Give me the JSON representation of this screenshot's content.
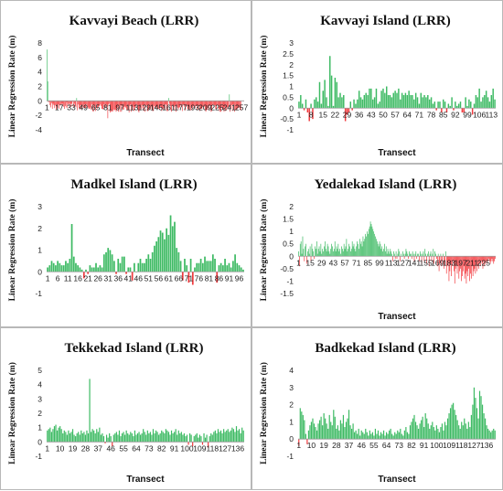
{
  "colors": {
    "positive": "#3dba63",
    "negative": "#f2383c",
    "border": "#b8b8b8"
  },
  "chart_data": [
    {
      "type": "bar",
      "title": "Kavvayi Beach (LRR)",
      "xlabel": "Transect",
      "ylabel": "Linear Regression Rate (m)",
      "ylim": [
        -4,
        8
      ],
      "yticks": [
        -4,
        -2,
        0,
        2,
        4,
        6,
        8
      ],
      "xtick_labels": [
        "1",
        "17",
        "33",
        "49",
        "65",
        "81",
        "97",
        "113",
        "129",
        "145",
        "161",
        "177",
        "193",
        "209",
        "225",
        "241",
        "257"
      ],
      "n": 260,
      "values": [
        7.1,
        2.7,
        -0.2,
        -0.1,
        -0.6,
        -0.9,
        -0.3,
        -1.1,
        -0.4,
        -0.6,
        -1.0,
        -0.6,
        -1.2,
        -0.8,
        -1.0,
        -0.5,
        -1.1,
        -0.6,
        -0.5,
        -0.4,
        -0.7,
        -0.4,
        -0.8,
        -1.1,
        -0.7,
        -0.9,
        -0.2,
        -1.0,
        -0.5,
        -0.4,
        -0.8,
        -0.4,
        -0.8,
        -0.4,
        -0.1,
        -0.9,
        -0.4,
        -0.7,
        -0.9,
        0.4,
        -1.3,
        -0.5,
        -1.0,
        -1.2,
        -0.6,
        -1.1,
        -1.2,
        -0.8,
        -1.0,
        -0.5,
        -1.0,
        -1.0,
        -0.5,
        -0.9,
        -0.9,
        -1.1,
        -1.1,
        -0.9,
        -1.2,
        -0.5,
        -1.4,
        -1.5,
        -0.6,
        -1.1,
        -1.4,
        -0.5,
        -1.1,
        -0.9,
        -0.8,
        -0.7,
        -0.5,
        -0.7,
        -1.1,
        -1.1,
        -1.2,
        -0.5,
        -1.0,
        -0.9,
        -0.5,
        -0.7,
        -2.4,
        -0.5,
        -0.4,
        -1.6,
        -1.5,
        -1.3,
        -1.5,
        -1.4,
        -1.2,
        -1.3,
        -1.2,
        -1.5,
        -1.3,
        -0.9,
        -1.5,
        -0.7,
        -1.5,
        -0.6,
        -1.5,
        -0.7,
        -1.2,
        -1.2,
        -0.8,
        -0.8,
        -1.0,
        -1.3,
        -1.3,
        -1.3,
        -1.6,
        -0.7,
        -0.5,
        -1.5,
        -1.2,
        -0.8,
        -1.4,
        -1.3,
        -0.9,
        -0.8,
        -0.5,
        -1.0,
        -1.4,
        -1.6,
        -1.3,
        -0.9,
        -1.2,
        -0.6,
        -1.0,
        -1.4,
        -0.6,
        -1.5,
        -0.8,
        -0.6,
        -1.4,
        -1.4,
        -1.2,
        -1.0,
        -1.2,
        -0.8,
        -1.1,
        -1.4,
        -1.4,
        -0.7,
        -1.0,
        -1.0,
        -0.8,
        -1.2,
        -1.1,
        -1.1,
        -1.2,
        -0.8,
        -0.9,
        -1.4,
        -1.0,
        -1.2,
        -1.0,
        -0.5,
        -1.3,
        -0.5,
        -1.4,
        -1.4,
        0.4,
        -0.4,
        -0.7,
        -1.3,
        -1.5,
        -0.7,
        -1.2,
        -0.8,
        -1.3,
        -0.6,
        -1.5,
        -0.8,
        -1.0,
        -1.2,
        -0.9,
        -0.9,
        -0.6,
        -0.8,
        -1.4,
        -0.5,
        -0.6,
        -0.8,
        -1.3,
        -0.7,
        -0.6,
        -1.1,
        -1.3,
        -0.8,
        -1.3,
        -1.3,
        -0.7,
        -1.3,
        -0.9,
        -0.7,
        -0.7,
        -1.0,
        -0.6,
        -0.7,
        -1.3,
        -1.1,
        -0.7,
        -1.4,
        -1.1,
        -1.1,
        -1.1,
        -0.8,
        -0.8,
        -0.8,
        -1.3,
        -1.5,
        -1.3,
        -1.2,
        -0.7,
        -1.3,
        -0.7,
        -0.6,
        -1.5,
        -1.4,
        -0.6,
        -0.5,
        -0.8,
        -0.6,
        -1.1,
        -1.1,
        -0.6,
        -0.6,
        -1.4,
        -1.1,
        -1.5,
        -1.5,
        -0.9,
        -1.2,
        -1.1,
        -1.5,
        -0.9,
        -1.4,
        -1.3,
        -0.9,
        -1.2,
        -0.8,
        0.9,
        -1.5,
        -1.0,
        -0.6,
        -1.4,
        -0.5,
        -0.5,
        -1.5,
        -1.2,
        -1.3,
        -1.2,
        -1.0,
        -1.0,
        -0.9,
        -1.2,
        -1.3
      ]
    },
    {
      "type": "bar",
      "title": "Kavvayi Island (LRR)",
      "xlabel": "Transect",
      "ylabel": "Linear Regression Rate (m)",
      "ylim": [
        -1,
        3
      ],
      "yticks": [
        -1,
        -0.5,
        0,
        0.5,
        1,
        1.5,
        2,
        2.5,
        3
      ],
      "xtick_labels": [
        "1",
        "8",
        "15",
        "22",
        "29",
        "36",
        "43",
        "50",
        "57",
        "64",
        "71",
        "78",
        "85",
        "92",
        "99",
        "106",
        "113"
      ],
      "n": 115,
      "values": [
        0.3,
        0.6,
        0.2,
        -0.1,
        0.4,
        -0.2,
        -0.6,
        0.2,
        -0.5,
        0.4,
        0.5,
        0.3,
        1.2,
        0.2,
        0.8,
        1.3,
        0.5,
        0.1,
        2.4,
        1.5,
        0.1,
        1.4,
        1.2,
        0.5,
        0.7,
        0.5,
        0.6,
        -0.6,
        -0.3,
        -0.2,
        0.3,
        -0.1,
        0.4,
        0.2,
        0.4,
        0.8,
        0.5,
        0.4,
        0.6,
        0.7,
        0.6,
        0.9,
        0.9,
        0.4,
        0.5,
        0.9,
        0.2,
        0.3,
        0.8,
        0.9,
        0.7,
        1.0,
        0.6,
        0.6,
        0.5,
        0.7,
        0.8,
        0.7,
        0.9,
        0.4,
        0.7,
        0.6,
        0.7,
        0.6,
        0.8,
        0.6,
        0.6,
        0.4,
        0.7,
        0.5,
        0.2,
        0.7,
        0.5,
        0.6,
        0.5,
        0.6,
        0.4,
        0.5,
        0.2,
        0.3,
        -0.1,
        0.3,
        0.3,
        -0.2,
        0.4,
        0.3,
        -0.2,
        0.2,
        0.1,
        0.5,
        -0.1,
        0.3,
        0.1,
        0.2,
        0.3,
        -0.2,
        -0.2,
        0.5,
        0.1,
        0.4,
        0.3,
        -0.3,
        0.2,
        0.6,
        0.5,
        0.9,
        0.3,
        0.5,
        0.6,
        0.8,
        0.5,
        0.3,
        0.6,
        0.9,
        0.4
      ]
    },
    {
      "type": "bar",
      "title": "Madkel Island (LRR)",
      "xlabel": "",
      "ylabel": "Linear Regression Rate (m)",
      "ylim": [
        -1,
        3
      ],
      "yticks": [
        -1,
        0,
        1,
        2,
        3
      ],
      "xtick_labels": [
        "1",
        "6",
        "11",
        "16",
        "21",
        "26",
        "31",
        "36",
        "41",
        "46",
        "51",
        "56",
        "61",
        "66",
        "71",
        "76",
        "81",
        "86",
        "91",
        "96"
      ],
      "n": 98,
      "values": [
        0.2,
        0.3,
        0.5,
        0.4,
        0.3,
        0.5,
        0.4,
        0.3,
        0.3,
        0.5,
        0.4,
        0.6,
        2.2,
        0.7,
        0.4,
        0.3,
        0.2,
        0.1,
        -0.3,
        0.1,
        -0.1,
        0.3,
        0.2,
        0.2,
        0.4,
        0.2,
        0.3,
        0.2,
        0.8,
        0.9,
        1.1,
        1.0,
        0.8,
        0.5,
        -0.1,
        0.6,
        0.4,
        0.7,
        0.7,
        -0.1,
        0.2,
        0.2,
        -0.4,
        0.4,
        0.0,
        0.4,
        0.6,
        0.4,
        0.4,
        0.6,
        0.8,
        0.6,
        0.9,
        1.2,
        1.4,
        1.6,
        1.9,
        1.8,
        1.5,
        2.0,
        1.7,
        2.6,
        2.1,
        2.3,
        1.1,
        0.9,
        0.5,
        -0.4,
        0.6,
        0.3,
        -0.5,
        0.6,
        -0.6,
        0.2,
        0.4,
        0.4,
        0.6,
        0.4,
        0.7,
        0.5,
        0.5,
        0.5,
        0.8,
        0.6,
        -0.5,
        0.3,
        0.4,
        0.3,
        0.6,
        0.3,
        0.4,
        0.2,
        0.5,
        0.8,
        0.4,
        0.3,
        0.2,
        0.1
      ]
    },
    {
      "type": "bar",
      "title": "Yedalekad Island (LRR)",
      "xlabel": "Transect",
      "ylabel": "Linear Regression Rate (m)",
      "ylim": [
        -1.5,
        2
      ],
      "yticks": [
        -1.5,
        -1,
        -0.5,
        0,
        0.5,
        1,
        1.5,
        2
      ],
      "xtick_labels": [
        "1",
        "15",
        "29",
        "43",
        "57",
        "71",
        "85",
        "99",
        "113",
        "127",
        "141",
        "155",
        "169",
        "183",
        "197",
        "211",
        "225"
      ],
      "n": 239,
      "values": [
        0.2,
        -0.4,
        0.5,
        0.6,
        0.1,
        0.8,
        0.3,
        -0.2,
        0.4,
        0.5,
        -0.3,
        0.2,
        0.3,
        0.1,
        0.4,
        -0.2,
        0.5,
        0.3,
        0.2,
        -0.1,
        0.4,
        0.3,
        0.6,
        0.1,
        0.3,
        0.4,
        0.2,
        0.5,
        0.1,
        0.3,
        0.2,
        0.4,
        0.6,
        0.3,
        0.2,
        0.5,
        0.4,
        0.2,
        0.1,
        0.3,
        0.5,
        0.4,
        0.2,
        0.3,
        0.6,
        0.2,
        0.4,
        0.3,
        0.5,
        0.2,
        0.3,
        0.1,
        0.4,
        0.3,
        0.2,
        0.5,
        0.3,
        0.4,
        0.7,
        0.2,
        0.3,
        0.5,
        0.4,
        0.2,
        0.3,
        0.6,
        0.4,
        0.5,
        0.3,
        0.2,
        0.4,
        0.6,
        0.5,
        0.3,
        0.7,
        0.5,
        0.6,
        0.4,
        0.8,
        0.6,
        0.7,
        0.9,
        0.8,
        1.0,
        0.9,
        1.1,
        1.2,
        1.4,
        1.3,
        1.2,
        1.1,
        1.0,
        0.9,
        0.8,
        0.7,
        0.6,
        0.5,
        0.4,
        0.6,
        0.5,
        0.3,
        0.4,
        0.2,
        0.3,
        0.5,
        0.2,
        0.4,
        0.1,
        0.3,
        0.2,
        0.1,
        0.3,
        0.2,
        0.1,
        -0.2,
        0.2,
        0.1,
        -0.1,
        0.2,
        -0.1,
        0.1,
        0.3,
        0.2,
        -0.2,
        0.1,
        0.0,
        0.2,
        0.1,
        -0.1,
        0.1,
        0.3,
        0.2,
        0.1,
        -0.1,
        0.2,
        0.1,
        0.1,
        -0.1,
        0.2,
        0.1,
        -0.2,
        0.1,
        0.2,
        -0.1,
        0.1,
        0.1,
        -0.2,
        0.2,
        0.1,
        -0.3,
        0.1,
        0.2,
        -0.2,
        0.3,
        0.1,
        -0.3,
        0.1,
        0.2,
        -0.4,
        0.1,
        0.2,
        -0.2,
        0.1,
        0.3,
        -0.3,
        0.2,
        0.1,
        -0.1,
        -0.4,
        0.1,
        -0.6,
        -0.3,
        0.1,
        -0.4,
        -0.2,
        0.1,
        -0.5,
        -0.3,
        0.2,
        -0.7,
        -0.4,
        -0.2,
        -1.0,
        -0.6,
        -0.3,
        -0.8,
        -0.4,
        -0.2,
        -0.6,
        -1.1,
        -0.5,
        -0.3,
        -0.7,
        -0.4,
        -0.9,
        -0.6,
        -0.5,
        -1.0,
        -0.8,
        -0.6,
        -0.4,
        -0.9,
        -0.7,
        -1.1,
        -0.6,
        -0.8,
        -0.5,
        -1.0,
        -0.7,
        -0.9,
        -0.4,
        -0.8,
        -0.6,
        -0.5,
        -0.7,
        -0.3,
        -0.6,
        -0.4,
        -0.5,
        -0.3,
        -0.4,
        -0.2,
        -0.3,
        -0.5,
        -0.2,
        -0.4,
        -0.3,
        -0.2,
        -0.3,
        -0.2,
        -0.1,
        -0.2,
        -0.3,
        -0.2,
        -0.1,
        -0.2,
        -0.3,
        -0.2,
        -0.1
      ]
    },
    {
      "type": "bar",
      "title": "Tekkekad Island (LRR)",
      "xlabel": "Transect",
      "ylabel": "Linear Regression Rate (m)",
      "ylim": [
        -1,
        5
      ],
      "yticks": [
        -1,
        0,
        1,
        2,
        3,
        4,
        5
      ],
      "xtick_labels": [
        "1",
        "10",
        "19",
        "28",
        "37",
        "46",
        "55",
        "64",
        "73",
        "82",
        "91",
        "100",
        "109",
        "118",
        "127",
        "136"
      ],
      "n": 140,
      "values": [
        0.8,
        0.9,
        1.0,
        0.7,
        0.9,
        1.1,
        1.2,
        0.8,
        1.0,
        1.1,
        0.9,
        0.6,
        0.8,
        0.7,
        0.5,
        0.8,
        0.6,
        0.7,
        0.9,
        0.5,
        0.4,
        0.6,
        0.7,
        0.5,
        0.8,
        0.6,
        0.7,
        0.5,
        0.8,
        0.6,
        4.4,
        0.7,
        0.9,
        0.8,
        0.6,
        0.9,
        0.7,
        1.0,
        0.5,
        0.6,
        0.4,
        -0.1,
        0.5,
        0.3,
        0.6,
        0.4,
        -0.3,
        0.5,
        0.6,
        0.7,
        0.5,
        0.8,
        0.4,
        0.6,
        0.7,
        0.5,
        0.8,
        0.6,
        0.5,
        0.7,
        0.6,
        0.4,
        0.8,
        0.5,
        0.6,
        0.7,
        0.5,
        0.6,
        0.9,
        0.7,
        0.5,
        0.8,
        0.6,
        0.7,
        0.5,
        0.9,
        0.6,
        0.8,
        0.7,
        0.5,
        0.6,
        0.8,
        0.7,
        0.6,
        0.9,
        0.8,
        0.7,
        0.5,
        0.8,
        0.6,
        0.7,
        0.9,
        0.5,
        0.8,
        0.6,
        0.7,
        0.5,
        0.6,
        0.4,
        0.5,
        -0.2,
        0.6,
        0.5,
        -0.3,
        0.4,
        0.5,
        0.6,
        0.3,
        0.5,
        0.4,
        -0.2,
        0.6,
        0.3,
        0.5,
        -0.4,
        0.4,
        0.6,
        0.5,
        0.7,
        0.8,
        0.6,
        0.9,
        0.7,
        0.8,
        0.6,
        0.9,
        0.7,
        0.8,
        0.9,
        0.7,
        0.8,
        1.0,
        0.9,
        0.7,
        1.1,
        0.8,
        0.9,
        0.6,
        1.0,
        0.8
      ]
    },
    {
      "type": "bar",
      "title": "Badkekad Island (LRR)",
      "xlabel": "Transect",
      "ylabel": "Linear Regression Rate (m)",
      "ylim": [
        -1,
        4
      ],
      "yticks": [
        -1,
        0,
        1,
        2,
        3,
        4
      ],
      "xtick_labels": [
        "1",
        "10",
        "19",
        "28",
        "37",
        "46",
        "55",
        "64",
        "73",
        "82",
        "91",
        "100",
        "109",
        "118",
        "127",
        "136"
      ],
      "n": 142,
      "values": [
        -0.4,
        1.8,
        1.6,
        1.4,
        1.1,
        0.3,
        -0.3,
        0.5,
        0.8,
        1.0,
        1.2,
        0.9,
        0.7,
        0.5,
        0.9,
        1.1,
        1.3,
        0.8,
        1.5,
        1.2,
        0.9,
        0.6,
        1.4,
        1.0,
        0.8,
        1.7,
        1.3,
        0.6,
        0.8,
        0.5,
        1.1,
        0.9,
        1.4,
        0.7,
        1.0,
        1.2,
        1.7,
        0.8,
        0.6,
        0.9,
        0.4,
        0.5,
        0.3,
        0.6,
        0.2,
        0.5,
        0.4,
        0.3,
        0.6,
        0.4,
        0.2,
        0.5,
        0.3,
        0.4,
        0.2,
        0.6,
        0.3,
        0.5,
        0.2,
        0.4,
        0.3,
        0.5,
        0.2,
        0.4,
        0.3,
        0.5,
        0.6,
        0.3,
        0.2,
        0.4,
        0.3,
        0.5,
        0.4,
        0.6,
        0.3,
        0.2,
        0.5,
        0.7,
        0.4,
        0.3,
        0.8,
        1.0,
        1.2,
        1.4,
        1.0,
        0.8,
        0.6,
        0.9,
        1.1,
        1.3,
        0.7,
        1.5,
        1.2,
        0.9,
        0.6,
        0.8,
        1.0,
        0.7,
        0.5,
        0.8,
        0.6,
        0.4,
        0.7,
        0.9,
        0.5,
        1.0,
        0.8,
        1.2,
        1.5,
        1.8,
        2.0,
        2.1,
        1.7,
        1.4,
        1.1,
        0.8,
        0.6,
        1.0,
        0.8,
        1.2,
        0.9,
        0.6,
        1.0,
        0.7,
        1.4,
        2.0,
        3.0,
        2.4,
        1.8,
        1.2,
        2.8,
        2.5,
        2.0,
        1.5,
        1.2,
        0.8,
        0.6,
        0.5,
        0.4,
        0.5,
        0.6,
        0.5
      ]
    }
  ]
}
